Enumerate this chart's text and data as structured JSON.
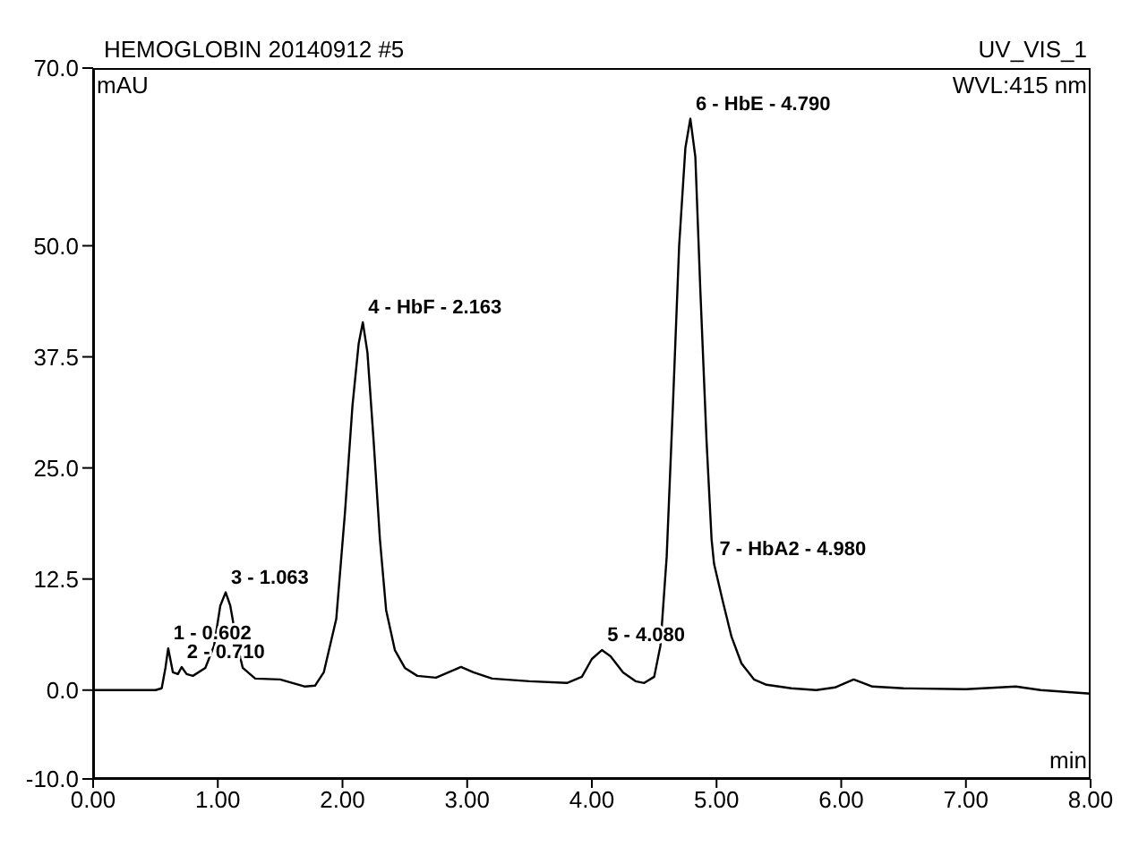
{
  "chart_data": {
    "type": "line",
    "title": "HEMOGLOBIN 20140912 #5",
    "ylabel": "mAU",
    "xlabel": "min",
    "x": [
      0,
      0.5,
      0.55,
      0.58,
      0.602,
      0.64,
      0.68,
      0.71,
      0.75,
      0.8,
      0.9,
      0.97,
      1.02,
      1.063,
      1.1,
      1.15,
      1.2,
      1.3,
      1.5,
      1.6,
      1.7,
      1.78,
      1.85,
      1.95,
      2.02,
      2.08,
      2.13,
      2.163,
      2.2,
      2.25,
      2.3,
      2.35,
      2.42,
      2.5,
      2.6,
      2.75,
      2.85,
      2.95,
      3.05,
      3.2,
      3.5,
      3.8,
      3.92,
      4.0,
      4.08,
      4.15,
      4.25,
      4.35,
      4.42,
      4.5,
      4.55,
      4.6,
      4.65,
      4.7,
      4.75,
      4.79,
      4.83,
      4.87,
      4.92,
      4.96,
      4.98,
      5.05,
      5.12,
      5.2,
      5.3,
      5.4,
      5.6,
      5.8,
      5.95,
      6.1,
      6.25,
      6.5,
      7.0,
      7.4,
      7.6,
      8.0
    ],
    "series": [
      {
        "color": "#000000",
        "values": [
          0,
          0,
          0.2,
          2.5,
          4.7,
          2,
          1.8,
          2.6,
          1.8,
          1.6,
          2.5,
          5,
          9.5,
          11,
          9.5,
          5.5,
          2.5,
          1.3,
          1.2,
          0.8,
          0.4,
          0.5,
          2,
          8,
          20,
          32,
          39,
          41.4,
          38,
          28,
          17,
          9,
          4.5,
          2.5,
          1.6,
          1.4,
          2,
          2.6,
          2,
          1.3,
          1,
          0.8,
          1.5,
          3.5,
          4.5,
          3.8,
          2,
          1,
          0.8,
          1.5,
          5,
          15,
          32,
          50,
          61,
          64.3,
          60,
          45,
          28,
          17,
          14.2,
          10,
          6,
          3,
          1.2,
          0.6,
          0.2,
          0,
          0.3,
          1.2,
          0.4,
          0.2,
          0.1,
          0.4,
          0,
          -0.4
        ]
      }
    ],
    "xlim": [
      0,
      8
    ],
    "xticks": [
      {
        "value": 0,
        "label": "0.00"
      },
      {
        "value": 1,
        "label": "1.00"
      },
      {
        "value": 2,
        "label": "2.00"
      },
      {
        "value": 3,
        "label": "3.00"
      },
      {
        "value": 4,
        "label": "4.00"
      },
      {
        "value": 5,
        "label": "5.00"
      },
      {
        "value": 6,
        "label": "6.00"
      },
      {
        "value": 7,
        "label": "7.00"
      },
      {
        "value": 8,
        "label": "8.00"
      }
    ],
    "ylim": [
      -10,
      70
    ],
    "yticks": [
      {
        "value": -10,
        "label": "-10.0"
      },
      {
        "value": 0,
        "label": "0.0"
      },
      {
        "value": 12.5,
        "label": "12.5"
      },
      {
        "value": 25,
        "label": "25.0"
      },
      {
        "value": 37.5,
        "label": "37.5"
      },
      {
        "value": 50,
        "label": "50.0"
      },
      {
        "value": 70,
        "label": "70.0"
      }
    ],
    "grid": false,
    "legend": false,
    "marker": "none",
    "line_style": "solid",
    "annotations": [
      "UV_VIS_1",
      "WVL:415 nm",
      {
        "text": "1 - 0.602",
        "x": 0.602,
        "y": 4.7
      },
      {
        "text": "2 - 0.710",
        "x": 0.71,
        "y": 2.6
      },
      {
        "text": "3 - 1.063",
        "x": 1.063,
        "y": 11
      },
      {
        "text": "4 - HbF - 2.163",
        "x": 2.163,
        "y": 41.4
      },
      {
        "text": "5 - 4.080",
        "x": 4.08,
        "y": 4.5
      },
      {
        "text": "6 - HbE - 4.790",
        "x": 4.79,
        "y": 64.3
      },
      {
        "text": "7 - HbA2 - 4.980",
        "x": 4.98,
        "y": 14.2
      }
    ]
  }
}
